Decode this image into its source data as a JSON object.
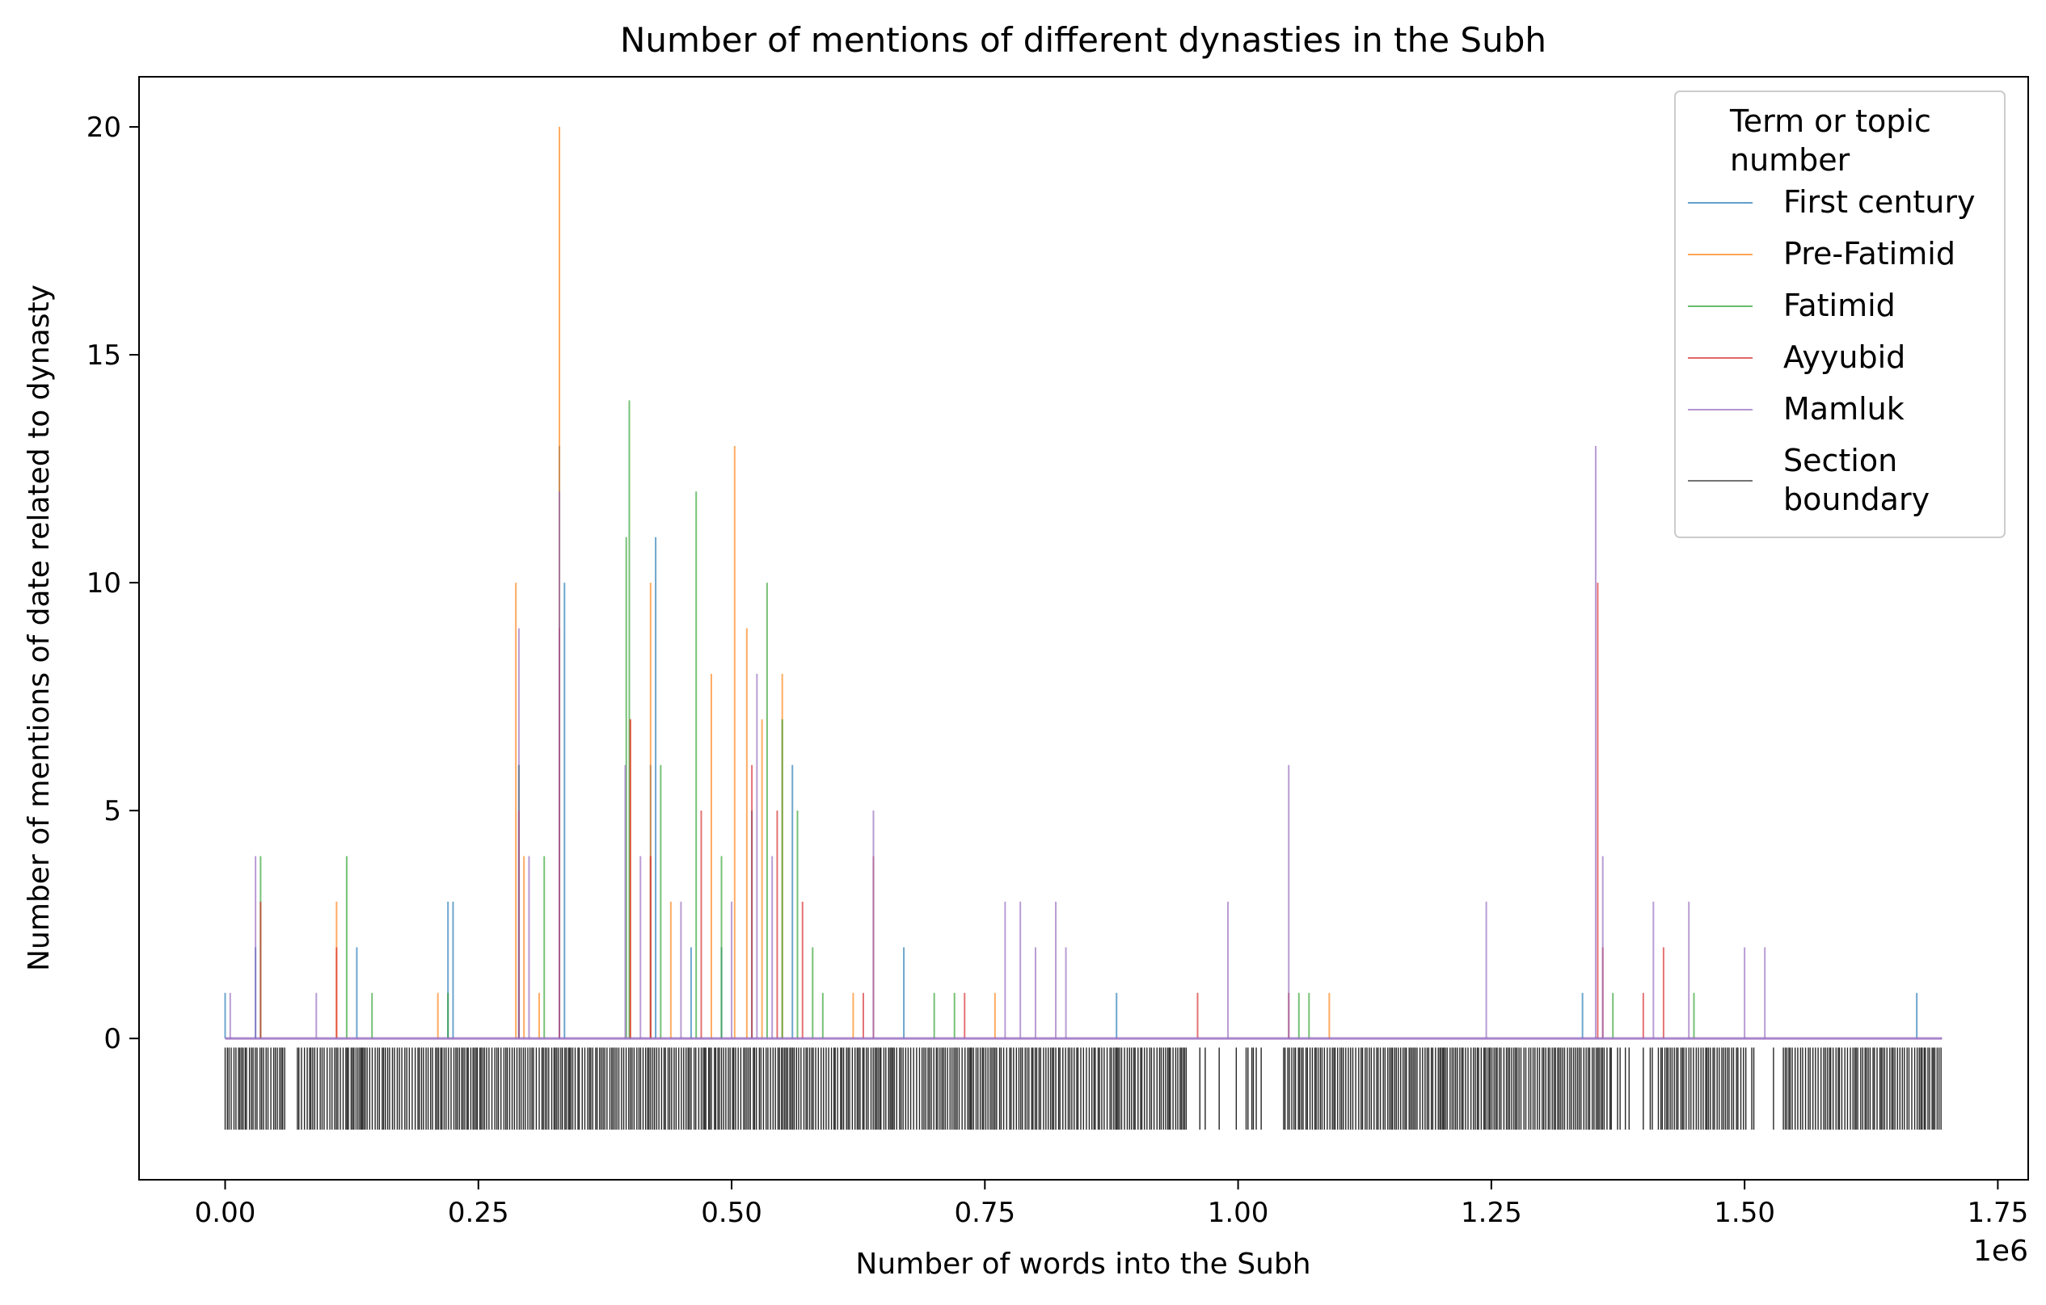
{
  "chart_data": {
    "type": "bar",
    "title": "Number of mentions of different dynasties in the Subh",
    "xlabel": "Number of words into the Subh",
    "ylabel": "Number of mentions of date related to dynasty",
    "x_offset_text": "1e6",
    "xlim": [
      -0.085,
      1.78
    ],
    "ylim": [
      -3.1,
      21.1
    ],
    "x_ticks": [
      0.0,
      0.25,
      0.5,
      0.75,
      1.0,
      1.25,
      1.5,
      1.75
    ],
    "x_tick_labels": [
      "0.00",
      "0.25",
      "0.50",
      "0.75",
      "1.00",
      "1.25",
      "1.50",
      "1.75"
    ],
    "y_ticks": [
      0,
      5,
      10,
      15,
      20
    ],
    "y_tick_labels": [
      "0",
      "5",
      "10",
      "15",
      "20"
    ],
    "x_units_note": "x values in millions of words (axis multiplier 1e6)",
    "legend": {
      "title": "Term or topic\nnumber",
      "location": "upper right"
    },
    "series": [
      {
        "name": "First century",
        "color": "#1f77b4",
        "spikes": [
          [
            0.0,
            1
          ],
          [
            0.03,
            2
          ],
          [
            0.13,
            2
          ],
          [
            0.22,
            3
          ],
          [
            0.225,
            3
          ],
          [
            0.29,
            6
          ],
          [
            0.33,
            13
          ],
          [
            0.335,
            10
          ],
          [
            0.42,
            6
          ],
          [
            0.425,
            11
          ],
          [
            0.46,
            2
          ],
          [
            0.49,
            2
          ],
          [
            0.52,
            5
          ],
          [
            0.56,
            6
          ],
          [
            0.67,
            2
          ],
          [
            0.88,
            1
          ],
          [
            1.34,
            1
          ],
          [
            1.67,
            1
          ]
        ]
      },
      {
        "name": "Pre-Fatimid",
        "color": "#ff7f0e",
        "spikes": [
          [
            0.11,
            3
          ],
          [
            0.21,
            1
          ],
          [
            0.287,
            10
          ],
          [
            0.295,
            4
          ],
          [
            0.31,
            1
          ],
          [
            0.33,
            20
          ],
          [
            0.4,
            7
          ],
          [
            0.42,
            10
          ],
          [
            0.44,
            3
          ],
          [
            0.48,
            8
          ],
          [
            0.503,
            13
          ],
          [
            0.515,
            9
          ],
          [
            0.53,
            7
          ],
          [
            0.55,
            8
          ],
          [
            0.62,
            1
          ],
          [
            0.76,
            1
          ],
          [
            1.09,
            1
          ]
        ]
      },
      {
        "name": "Fatimid",
        "color": "#2ca02c",
        "spikes": [
          [
            0.035,
            4
          ],
          [
            0.12,
            4
          ],
          [
            0.145,
            1
          ],
          [
            0.22,
            1
          ],
          [
            0.29,
            6
          ],
          [
            0.315,
            4
          ],
          [
            0.396,
            11
          ],
          [
            0.399,
            14
          ],
          [
            0.43,
            6
          ],
          [
            0.465,
            12
          ],
          [
            0.49,
            4
          ],
          [
            0.535,
            10
          ],
          [
            0.55,
            7
          ],
          [
            0.565,
            5
          ],
          [
            0.58,
            2
          ],
          [
            0.59,
            1
          ],
          [
            0.7,
            1
          ],
          [
            0.72,
            1
          ],
          [
            1.06,
            1
          ],
          [
            1.07,
            1
          ],
          [
            1.37,
            1
          ],
          [
            1.45,
            1
          ]
        ]
      },
      {
        "name": "Ayyubid",
        "color": "#d62728",
        "spikes": [
          [
            0.035,
            3
          ],
          [
            0.11,
            2
          ],
          [
            0.29,
            5
          ],
          [
            0.33,
            9
          ],
          [
            0.4,
            7
          ],
          [
            0.42,
            4
          ],
          [
            0.47,
            5
          ],
          [
            0.52,
            6
          ],
          [
            0.545,
            5
          ],
          [
            0.57,
            3
          ],
          [
            0.63,
            1
          ],
          [
            0.64,
            4
          ],
          [
            0.73,
            1
          ],
          [
            0.96,
            1
          ],
          [
            1.05,
            1
          ],
          [
            1.355,
            10
          ],
          [
            1.36,
            2
          ],
          [
            1.4,
            1
          ],
          [
            1.42,
            2
          ]
        ]
      },
      {
        "name": "Mamluk",
        "color": "#9467bd",
        "spikes": [
          [
            0.005,
            1
          ],
          [
            0.03,
            4
          ],
          [
            0.09,
            1
          ],
          [
            0.29,
            9
          ],
          [
            0.3,
            4
          ],
          [
            0.33,
            12
          ],
          [
            0.395,
            6
          ],
          [
            0.41,
            4
          ],
          [
            0.45,
            3
          ],
          [
            0.5,
            3
          ],
          [
            0.525,
            8
          ],
          [
            0.54,
            4
          ],
          [
            0.64,
            5
          ],
          [
            0.77,
            3
          ],
          [
            0.785,
            3
          ],
          [
            0.8,
            2
          ],
          [
            0.82,
            3
          ],
          [
            0.83,
            2
          ],
          [
            0.99,
            3
          ],
          [
            1.05,
            6
          ],
          [
            1.245,
            3
          ],
          [
            1.353,
            13
          ],
          [
            1.36,
            4
          ],
          [
            1.41,
            3
          ],
          [
            1.445,
            3
          ],
          [
            1.5,
            2
          ],
          [
            1.52,
            2
          ]
        ]
      },
      {
        "name": "Section\nboundary",
        "color": "#000000",
        "range": [
          0.0,
          1.695
        ],
        "y_span": [
          -2,
          -0.2
        ]
      }
    ]
  }
}
